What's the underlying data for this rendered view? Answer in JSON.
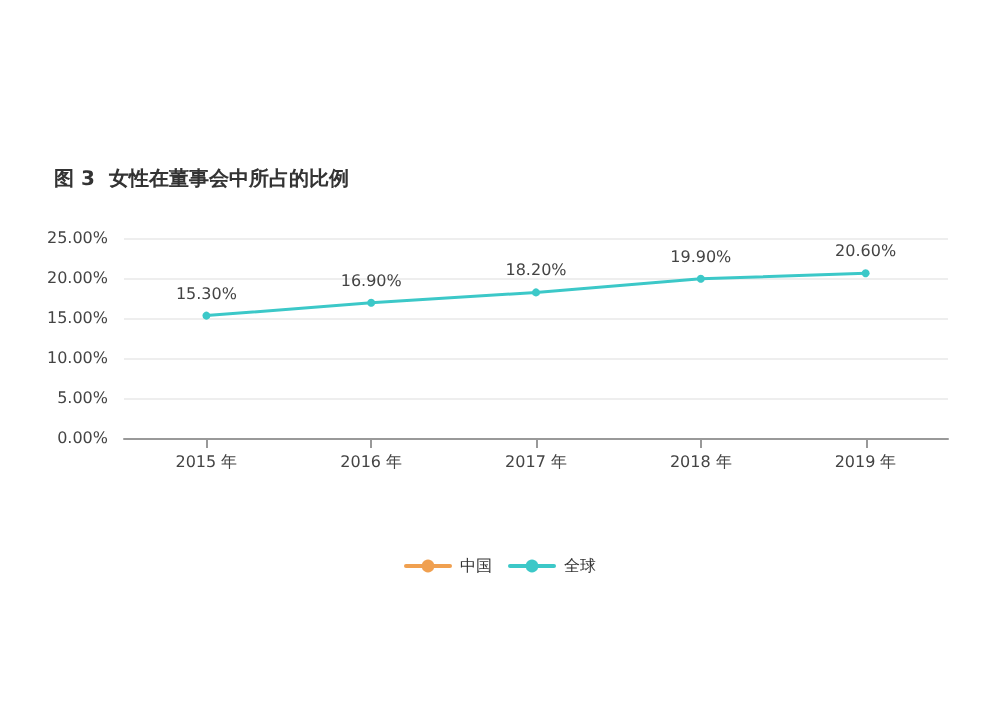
{
  "chart_data": {
    "type": "line",
    "title": "图 3  女性在董事会中所占的比例",
    "categories": [
      "2015 年",
      "2016 年",
      "2017 年",
      "2018 年",
      "2019 年"
    ],
    "series": [
      {
        "name": "中国",
        "color": "#f0a050",
        "values": [
          null,
          null,
          null,
          null,
          null
        ]
      },
      {
        "name": "全球",
        "color": "#3cc8c8",
        "values": [
          15.3,
          16.9,
          18.2,
          19.9,
          20.6
        ],
        "value_labels": [
          "15.30%",
          "16.90%",
          "18.20%",
          "19.90%",
          "20.60%"
        ]
      }
    ],
    "ylim": [
      0,
      25
    ],
    "yticks": [
      {
        "value": 0,
        "label": "0.00%"
      },
      {
        "value": 5,
        "label": "5.00%"
      },
      {
        "value": 10,
        "label": "10.00%"
      },
      {
        "value": 15,
        "label": "15.00%"
      },
      {
        "value": 20,
        "label": "20.00%"
      },
      {
        "value": 25,
        "label": "25.00%"
      }
    ],
    "grid": "y",
    "legend": "bottom",
    "marker": "circle",
    "line_style": "solid"
  }
}
